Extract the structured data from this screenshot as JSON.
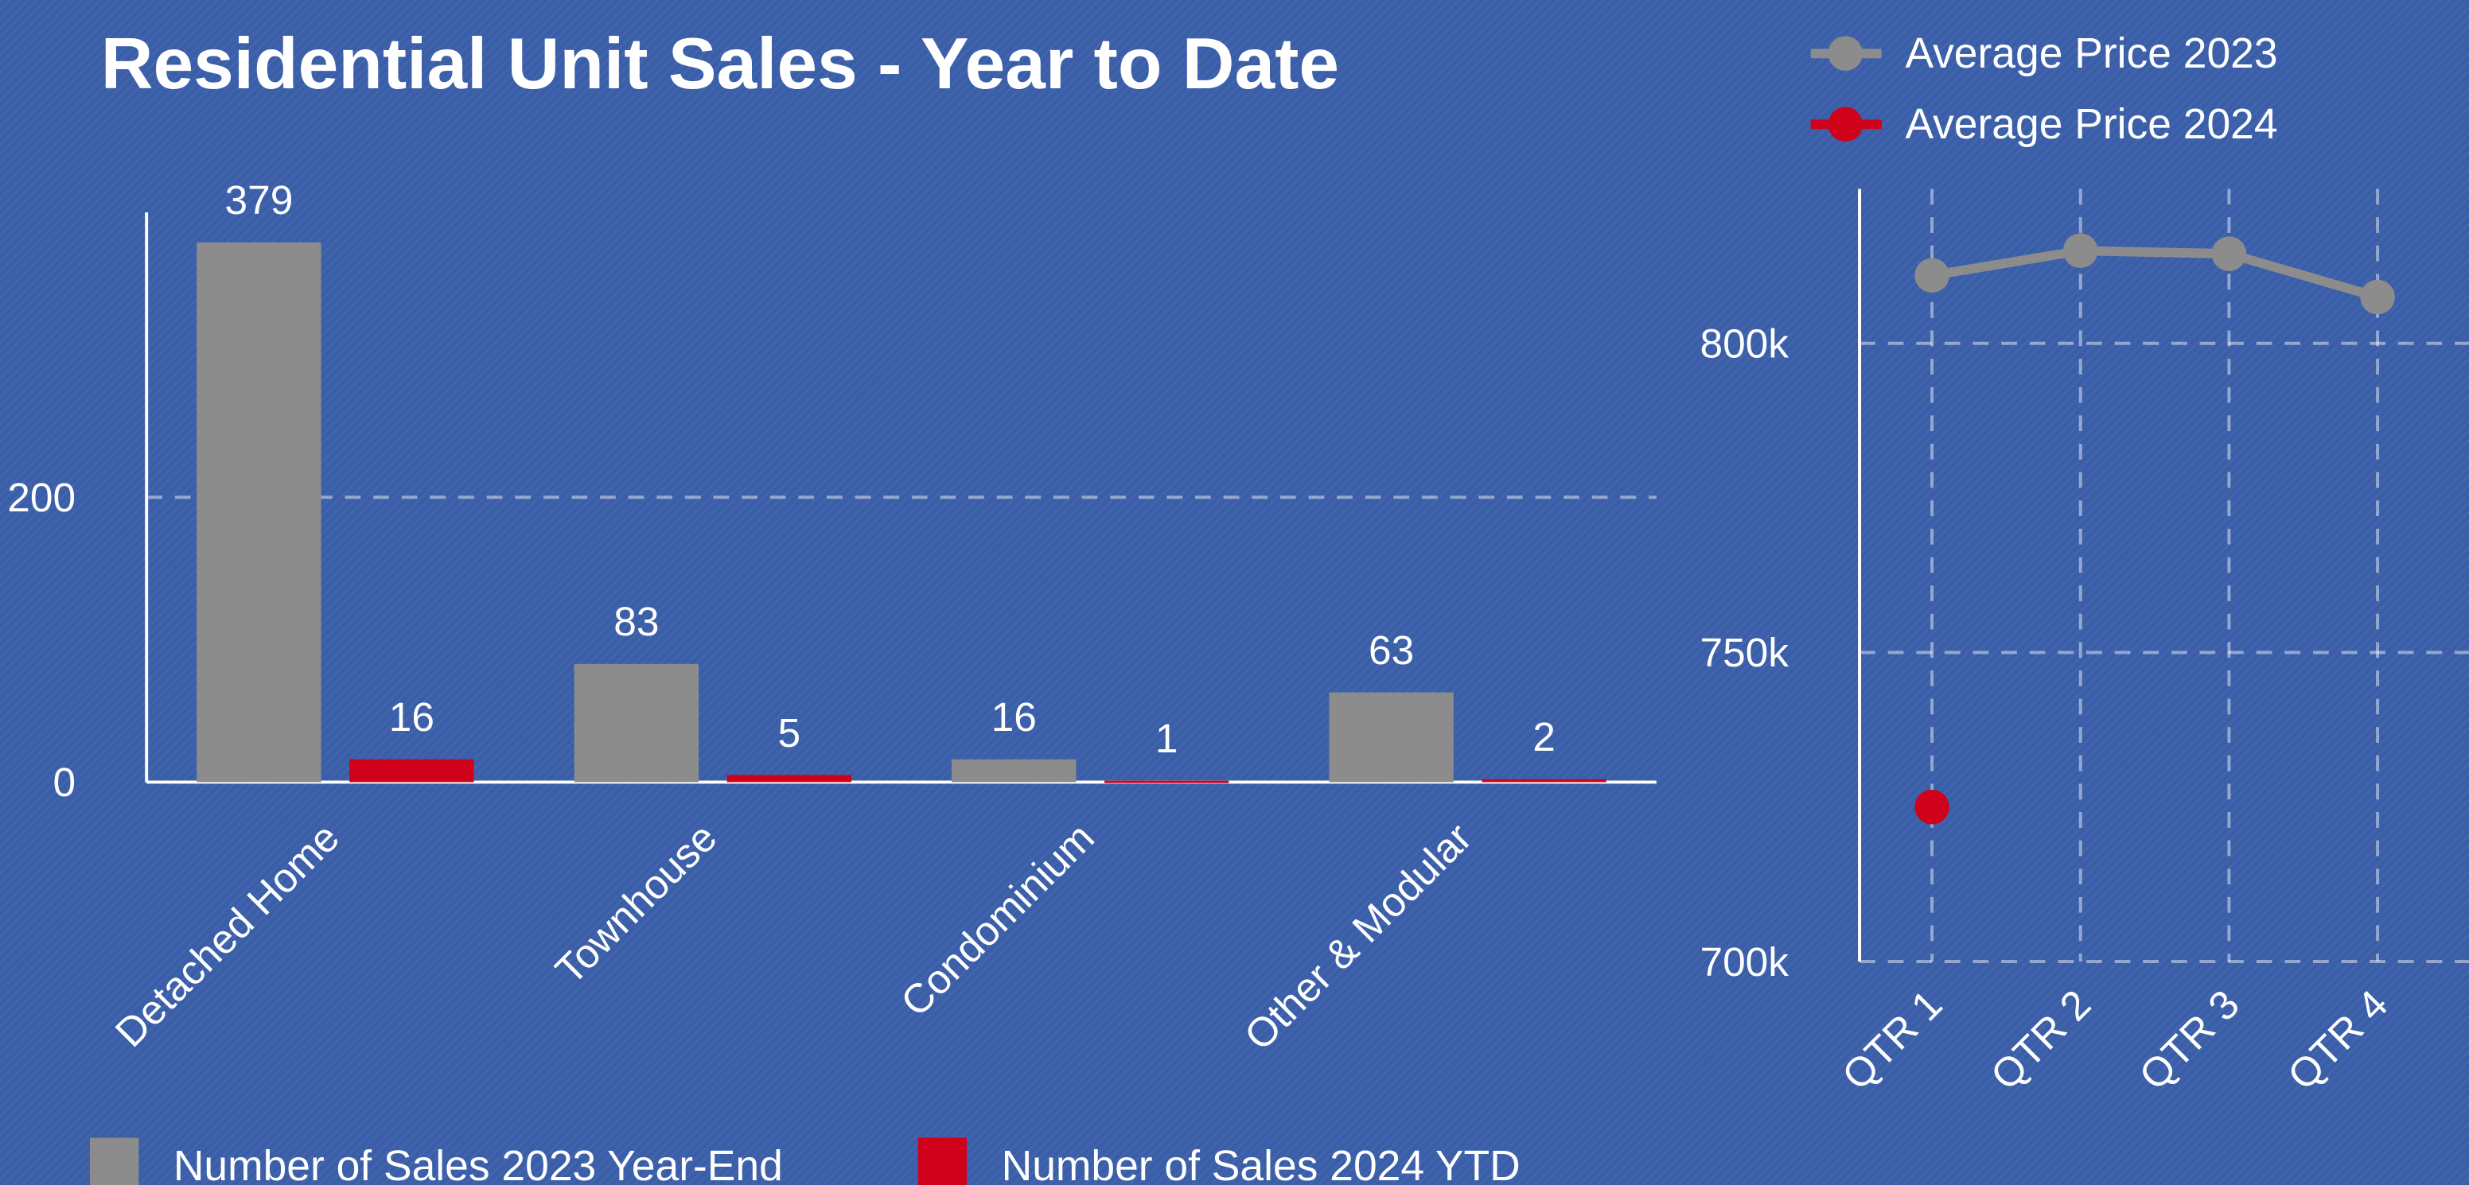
{
  "chart_data": [
    {
      "type": "bar",
      "title": "Residential Unit Sales - Year to Date",
      "categories": [
        "Detached Home",
        "Townhouse",
        "Condominium",
        "Other & Modular"
      ],
      "series": [
        {
          "name": "Number of Sales 2023 Year-End",
          "color": "#8c8c8c",
          "values": [
            379,
            83,
            16,
            63
          ]
        },
        {
          "name": "Number of Sales 2024 YTD",
          "color": "#d0021b",
          "values": [
            16,
            5,
            1,
            2
          ]
        }
      ],
      "ylim": [
        0,
        400
      ],
      "yticks": [
        0,
        200
      ],
      "grid": true,
      "legend": "bottom"
    },
    {
      "type": "line",
      "categories": [
        "QTR 1",
        "QTR 2",
        "QTR 3",
        "QTR 4"
      ],
      "series": [
        {
          "name": "Average Price 2023",
          "color": "#8c8c8c",
          "values": [
            811000,
            815000,
            814500,
            807500
          ]
        },
        {
          "name": "Average Price 2024",
          "color": "#d0021b",
          "values": [
            725000,
            null,
            null,
            null
          ]
        }
      ],
      "ylim": [
        700000,
        825000
      ],
      "yticks": [
        {
          "value": 700000,
          "label": "700k"
        },
        {
          "value": 750000,
          "label": "750k"
        },
        {
          "value": 800000,
          "label": "800k"
        }
      ],
      "grid": true,
      "legend": "top"
    }
  ]
}
